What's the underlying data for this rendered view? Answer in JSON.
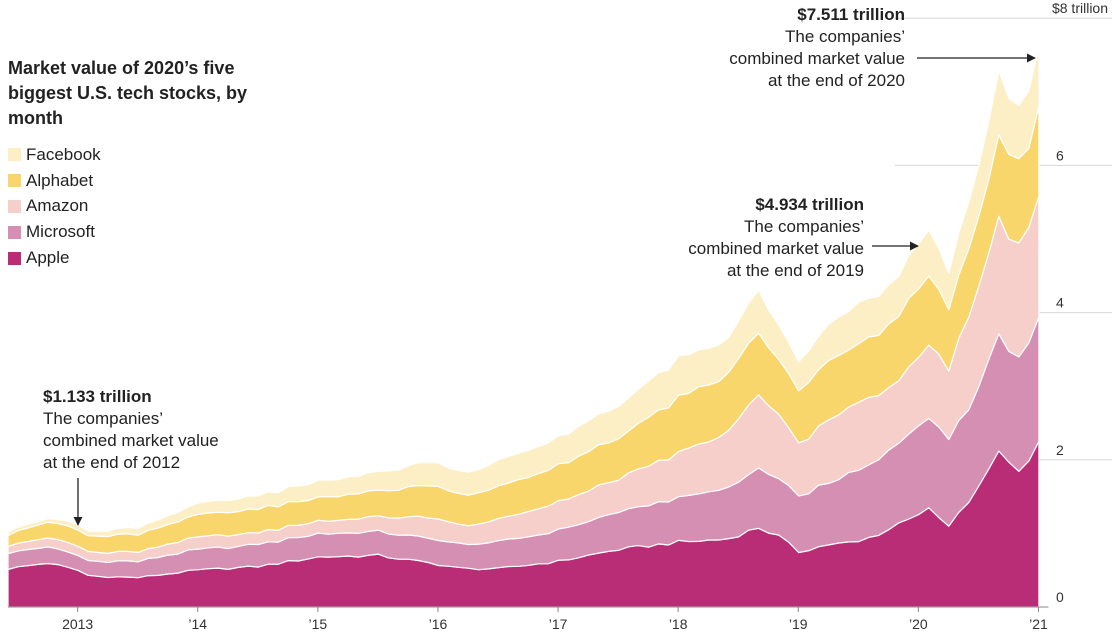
{
  "chart_data": {
    "type": "area",
    "stacked": true,
    "title": "Market value of 2020’s five biggest U.S. tech stocks, by month",
    "x_start": "2012-08",
    "x_end": "2020-12",
    "x_ticks": [
      {
        "label": "2013",
        "year": 2013.0
      },
      {
        "label": "’14",
        "year": 2014.0
      },
      {
        "label": "’15",
        "year": 2015.0
      },
      {
        "label": "’16",
        "year": 2016.0
      },
      {
        "label": "’17",
        "year": 2017.0
      },
      {
        "label": "’18",
        "year": 2018.0
      },
      {
        "label": "’19",
        "year": 2019.0
      },
      {
        "label": "’20",
        "year": 2020.0
      },
      {
        "label": "’21",
        "year": 2021.0
      }
    ],
    "y_ticks": [
      {
        "label": "0",
        "value": 0
      },
      {
        "label": "2",
        "value": 2
      },
      {
        "label": "4",
        "value": 4
      },
      {
        "label": "6",
        "value": 6
      },
      {
        "label": "$8 trillion",
        "value": 8
      }
    ],
    "ylim": [
      0,
      8
    ],
    "unit": "trillion dollars",
    "series": [
      {
        "name": "Apple",
        "color": "#b92d77",
        "anchors": [
          [
            2012.42,
            0.52
          ],
          [
            2012.75,
            0.6
          ],
          [
            2013.0,
            0.5
          ],
          [
            2013.1,
            0.42
          ],
          [
            2013.5,
            0.4
          ],
          [
            2014.0,
            0.5
          ],
          [
            2014.5,
            0.55
          ],
          [
            2015.0,
            0.68
          ],
          [
            2015.5,
            0.7
          ],
          [
            2016.0,
            0.58
          ],
          [
            2016.2,
            0.52
          ],
          [
            2016.5,
            0.52
          ],
          [
            2017.0,
            0.62
          ],
          [
            2017.5,
            0.78
          ],
          [
            2018.0,
            0.88
          ],
          [
            2018.4,
            0.92
          ],
          [
            2018.67,
            1.08
          ],
          [
            2018.85,
            0.95
          ],
          [
            2019.0,
            0.75
          ],
          [
            2019.25,
            0.85
          ],
          [
            2019.5,
            0.88
          ],
          [
            2019.75,
            1.05
          ],
          [
            2019.95,
            1.25
          ],
          [
            2020.1,
            1.32
          ],
          [
            2020.25,
            1.08
          ],
          [
            2020.5,
            1.6
          ],
          [
            2020.67,
            2.15
          ],
          [
            2020.8,
            1.85
          ],
          [
            2020.92,
            2.0
          ],
          [
            2021.0,
            2.2
          ],
          [
            2021.05,
            2.22
          ]
        ]
      },
      {
        "name": "Microsoft",
        "color": "#d58fb2",
        "anchors": [
          [
            2012.42,
            0.22
          ],
          [
            2012.75,
            0.22
          ],
          [
            2013.0,
            0.2
          ],
          [
            2013.1,
            0.2
          ],
          [
            2013.5,
            0.22
          ],
          [
            2014.0,
            0.28
          ],
          [
            2014.5,
            0.3
          ],
          [
            2015.0,
            0.32
          ],
          [
            2015.5,
            0.32
          ],
          [
            2016.0,
            0.34
          ],
          [
            2016.2,
            0.32
          ],
          [
            2016.5,
            0.36
          ],
          [
            2017.0,
            0.42
          ],
          [
            2017.5,
            0.5
          ],
          [
            2018.0,
            0.6
          ],
          [
            2018.4,
            0.68
          ],
          [
            2018.67,
            0.8
          ],
          [
            2018.85,
            0.78
          ],
          [
            2019.0,
            0.75
          ],
          [
            2019.25,
            0.85
          ],
          [
            2019.5,
            0.95
          ],
          [
            2019.75,
            1.05
          ],
          [
            2019.95,
            1.15
          ],
          [
            2020.1,
            1.25
          ],
          [
            2020.25,
            1.18
          ],
          [
            2020.5,
            1.35
          ],
          [
            2020.67,
            1.55
          ],
          [
            2020.8,
            1.55
          ],
          [
            2020.92,
            1.62
          ],
          [
            2021.0,
            1.65
          ],
          [
            2021.05,
            1.68
          ]
        ]
      },
      {
        "name": "Amazon",
        "color": "#f6cfcb",
        "anchors": [
          [
            2012.42,
            0.1
          ],
          [
            2012.75,
            0.12
          ],
          [
            2013.0,
            0.13
          ],
          [
            2013.1,
            0.12
          ],
          [
            2013.5,
            0.13
          ],
          [
            2014.0,
            0.17
          ],
          [
            2014.5,
            0.16
          ],
          [
            2015.0,
            0.17
          ],
          [
            2015.5,
            0.2
          ],
          [
            2016.0,
            0.3
          ],
          [
            2016.2,
            0.25
          ],
          [
            2016.5,
            0.3
          ],
          [
            2017.0,
            0.38
          ],
          [
            2017.5,
            0.45
          ],
          [
            2018.0,
            0.6
          ],
          [
            2018.4,
            0.75
          ],
          [
            2018.67,
            1.0
          ],
          [
            2018.85,
            0.85
          ],
          [
            2019.0,
            0.72
          ],
          [
            2019.25,
            0.85
          ],
          [
            2019.5,
            0.92
          ],
          [
            2019.75,
            0.85
          ],
          [
            2019.95,
            0.9
          ],
          [
            2020.1,
            1.0
          ],
          [
            2020.25,
            0.95
          ],
          [
            2020.5,
            1.35
          ],
          [
            2020.67,
            1.6
          ],
          [
            2020.8,
            1.55
          ],
          [
            2020.92,
            1.6
          ],
          [
            2021.0,
            1.6
          ],
          [
            2021.05,
            1.62
          ]
        ]
      },
      {
        "name": "Alphabet",
        "color": "#f9d66b",
        "anchors": [
          [
            2012.42,
            0.15
          ],
          [
            2012.75,
            0.22
          ],
          [
            2013.0,
            0.22
          ],
          [
            2013.1,
            0.22
          ],
          [
            2013.5,
            0.24
          ],
          [
            2014.0,
            0.3
          ],
          [
            2014.5,
            0.32
          ],
          [
            2015.0,
            0.32
          ],
          [
            2015.5,
            0.35
          ],
          [
            2016.0,
            0.45
          ],
          [
            2016.2,
            0.4
          ],
          [
            2016.5,
            0.45
          ],
          [
            2017.0,
            0.5
          ],
          [
            2017.5,
            0.55
          ],
          [
            2018.0,
            0.75
          ],
          [
            2018.4,
            0.78
          ],
          [
            2018.67,
            0.85
          ],
          [
            2018.85,
            0.75
          ],
          [
            2019.0,
            0.72
          ],
          [
            2019.25,
            0.82
          ],
          [
            2019.5,
            0.78
          ],
          [
            2019.75,
            0.85
          ],
          [
            2019.95,
            0.92
          ],
          [
            2020.1,
            0.95
          ],
          [
            2020.25,
            0.85
          ],
          [
            2020.5,
            0.95
          ],
          [
            2020.67,
            1.1
          ],
          [
            2020.8,
            1.15
          ],
          [
            2020.92,
            1.1
          ],
          [
            2021.0,
            1.2
          ],
          [
            2021.05,
            1.22
          ]
        ]
      },
      {
        "name": "Facebook",
        "color": "#fcefc5",
        "anchors": [
          [
            2012.42,
            0.05
          ],
          [
            2012.75,
            0.05
          ],
          [
            2013.0,
            0.07
          ],
          [
            2013.1,
            0.06
          ],
          [
            2013.5,
            0.09
          ],
          [
            2014.0,
            0.15
          ],
          [
            2014.5,
            0.18
          ],
          [
            2015.0,
            0.22
          ],
          [
            2015.5,
            0.25
          ],
          [
            2016.0,
            0.33
          ],
          [
            2016.2,
            0.3
          ],
          [
            2016.5,
            0.35
          ],
          [
            2017.0,
            0.38
          ],
          [
            2017.5,
            0.45
          ],
          [
            2018.0,
            0.52
          ],
          [
            2018.4,
            0.48
          ],
          [
            2018.67,
            0.58
          ],
          [
            2018.85,
            0.45
          ],
          [
            2019.0,
            0.38
          ],
          [
            2019.25,
            0.5
          ],
          [
            2019.5,
            0.55
          ],
          [
            2019.75,
            0.52
          ],
          [
            2019.95,
            0.6
          ],
          [
            2020.1,
            0.62
          ],
          [
            2020.25,
            0.5
          ],
          [
            2020.5,
            0.7
          ],
          [
            2020.67,
            0.85
          ],
          [
            2020.8,
            0.7
          ],
          [
            2020.92,
            0.78
          ],
          [
            2021.0,
            0.78
          ],
          [
            2021.05,
            0.79
          ]
        ]
      }
    ],
    "annotations": [
      {
        "value": "$1.133 trillion",
        "text": "The companies’\ncombined market value\nat the end of 2012",
        "x_year": 2013.0
      },
      {
        "value": "$4.934 trillion",
        "text": "The companies’\ncombined market value\nat the end of 2019",
        "x_year": 2020.0
      },
      {
        "value": "$7.511 trillion",
        "text": "The companies’\ncombined market value\nat the end of 2020",
        "x_year": 2021.0
      }
    ]
  }
}
